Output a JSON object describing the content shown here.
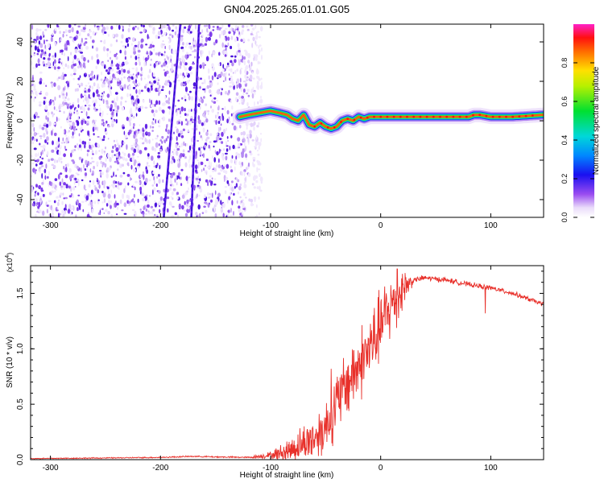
{
  "title": "GN04.2025.265.01.01.G05",
  "chart_data": [
    {
      "type": "heatmap",
      "panel": "spectrogram",
      "xlabel": "Height of straight line (km)",
      "ylabel": "Frequency (Hz)",
      "xlim": [
        -318,
        148
      ],
      "ylim": [
        -49,
        49
      ],
      "xticks": [
        -300,
        -200,
        -100,
        0,
        100
      ],
      "yticks": [
        -40,
        -20,
        0,
        20,
        40
      ],
      "noise_region_km": [
        -318,
        -108
      ],
      "tone_track": {
        "x": [
          -128,
          -120,
          -110,
          -100,
          -92,
          -85,
          -80,
          -75,
          -70,
          -65,
          -60,
          -55,
          -50,
          -45,
          -40,
          -35,
          -30,
          -25,
          -20,
          -15,
          -10,
          -5,
          0,
          10,
          20,
          40,
          60,
          80,
          85,
          90,
          100,
          120,
          148
        ],
        "y": [
          2,
          3,
          4,
          5,
          4,
          3,
          1,
          0,
          3,
          -2,
          -3,
          -1,
          -3,
          -4,
          -3,
          0,
          1,
          0,
          2,
          1,
          2,
          2,
          2,
          2,
          2,
          2,
          2,
          2,
          3,
          3,
          2,
          2,
          3
        ]
      },
      "diagonal_streaks": [
        {
          "x_at_bottom": -197,
          "x_at_top": -182
        },
        {
          "x_at_bottom": -172,
          "x_at_top": -165
        }
      ],
      "colorbar": {
        "label": "Normalized spectral amplitude",
        "ticks": [
          "0.0",
          "0.2",
          "0.4",
          "0.6",
          "0.8"
        ],
        "tick_values": [
          0.0,
          0.2,
          0.4,
          0.6,
          0.8
        ],
        "range": [
          0,
          1
        ]
      }
    },
    {
      "type": "line",
      "panel": "snr",
      "xlabel": "Height of straight line (km)",
      "ylabel": "SNR (10 * v/v)",
      "scale_label": "(x10",
      "scale_exponent": "4",
      "xlim": [
        -318,
        148
      ],
      "ylim": [
        0,
        1.75
      ],
      "xticks": [
        -300,
        -200,
        -100,
        0,
        100
      ],
      "yticks": [
        "0.0",
        "0.5",
        "1.0",
        "1.5"
      ],
      "ytick_values": [
        0.0,
        0.5,
        1.0,
        1.5
      ],
      "color": "#e8302a",
      "envelope": {
        "x": [
          -318,
          -250,
          -200,
          -170,
          -150,
          -120,
          -100,
          -90,
          -80,
          -70,
          -60,
          -50,
          -40,
          -30,
          -20,
          -10,
          0,
          10,
          20,
          30,
          40,
          50,
          60,
          80,
          100,
          120,
          148
        ],
        "y": [
          0.01,
          0.015,
          0.02,
          0.03,
          0.025,
          0.02,
          0.04,
          0.06,
          0.1,
          0.15,
          0.2,
          0.3,
          0.5,
          0.7,
          0.85,
          1.0,
          1.2,
          1.4,
          1.55,
          1.62,
          1.64,
          1.63,
          1.62,
          1.58,
          1.55,
          1.5,
          1.4
        ]
      },
      "noise_amplitude": {
        "x": [
          -318,
          -120,
          -100,
          -80,
          -60,
          -40,
          -20,
          0,
          15,
          30,
          148
        ],
        "y": [
          0.005,
          0.008,
          0.04,
          0.15,
          0.25,
          0.35,
          0.4,
          0.4,
          0.35,
          0.03,
          0.025
        ]
      },
      "spikes": [
        {
          "x": -45,
          "y": 0.82
        },
        {
          "x": 15,
          "y": 1.72
        },
        {
          "x": 95,
          "y": 1.72
        },
        {
          "x": 95,
          "y": 1.32
        }
      ]
    }
  ]
}
